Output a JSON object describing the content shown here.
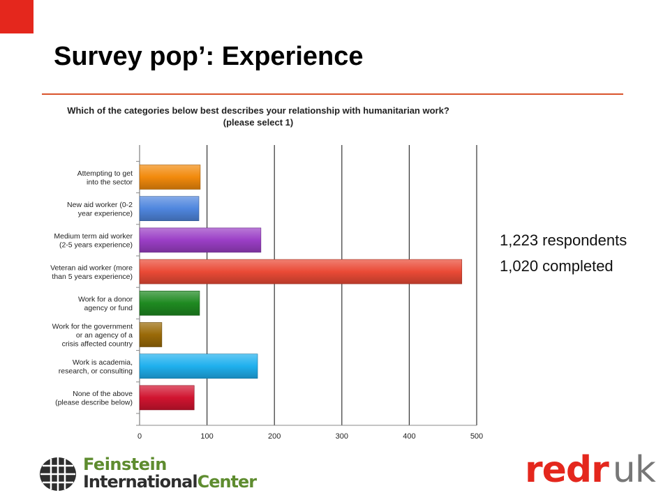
{
  "slide": {
    "title": "Survey pop’: Experience",
    "accent_color": "#e4271d",
    "rule_color": "#d9532b"
  },
  "chart_data": {
    "type": "bar",
    "orientation": "horizontal",
    "title": "Which of the categories below best describes your relationship with humanitarian work?",
    "subtitle": "(please select 1)",
    "categories": [
      [
        "Attempting to get",
        "into the sector"
      ],
      [
        "New aid worker (0-2",
        "year experience)"
      ],
      [
        "Medium term aid worker",
        "(2-5 years experience)"
      ],
      [
        "Veteran aid worker (more",
        "than 5 years experience)"
      ],
      [
        "Work for a donor",
        "agency or fund"
      ],
      [
        "Work for the government",
        "or an agency of a",
        "crisis affected country"
      ],
      [
        "Work is academia,",
        "research, or consulting"
      ],
      [
        "None of the above",
        "(please describe below)"
      ]
    ],
    "values": [
      90,
      88,
      180,
      478,
      89,
      33,
      175,
      81
    ],
    "colors": [
      "#f28a0c",
      "#4f86de",
      "#9b3fc6",
      "#ea4a36",
      "#1f8a21",
      "#9a6a08",
      "#1fb0ee",
      "#d11430"
    ],
    "xlim": [
      0,
      500
    ],
    "xticks": [
      0,
      100,
      200,
      300,
      400,
      500
    ],
    "grid": true,
    "legend": "none"
  },
  "stats": {
    "respondents": "1,223 respondents",
    "completed": "1,020 completed"
  },
  "logos": {
    "fic_line1": "Feinstein",
    "fic_line2a": "International",
    "fic_line2b": "Center",
    "fic_icon": "globe-mark-icon",
    "redr": "redr",
    "uk": "uk",
    "fic_green": "#5e8c2f",
    "redr_red": "#e4271d",
    "uk_gray": "#777777"
  }
}
